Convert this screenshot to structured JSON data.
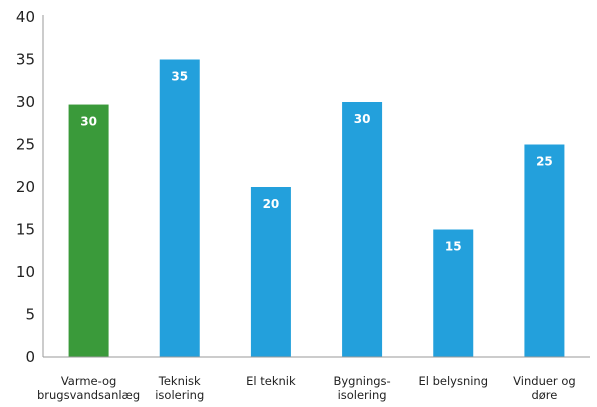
{
  "chart_data": {
    "type": "bar",
    "title": "",
    "xlabel": "",
    "ylabel": "",
    "ylim": [
      0,
      40
    ],
    "yticks": [
      0,
      5,
      10,
      15,
      20,
      25,
      30,
      35,
      40
    ],
    "grid": false,
    "legend": "none",
    "categories": [
      [
        "Varme-og",
        "brugsvandsanlæg"
      ],
      [
        "Teknisk",
        "isolering"
      ],
      [
        "El teknik"
      ],
      [
        "Bygnings-",
        "isolering"
      ],
      [
        "El belysning"
      ],
      [
        "Vinduer og",
        "døre"
      ]
    ],
    "values": [
      29.7,
      35,
      20,
      30,
      15,
      25
    ],
    "data_labels": [
      "30",
      "35",
      "20",
      "30",
      "15",
      "25"
    ],
    "colors": [
      "#3a9a3a",
      "#23a0dc",
      "#23a0dc",
      "#23a0dc",
      "#23a0dc",
      "#23a0dc"
    ],
    "axis_color": "#9a9a9a"
  }
}
